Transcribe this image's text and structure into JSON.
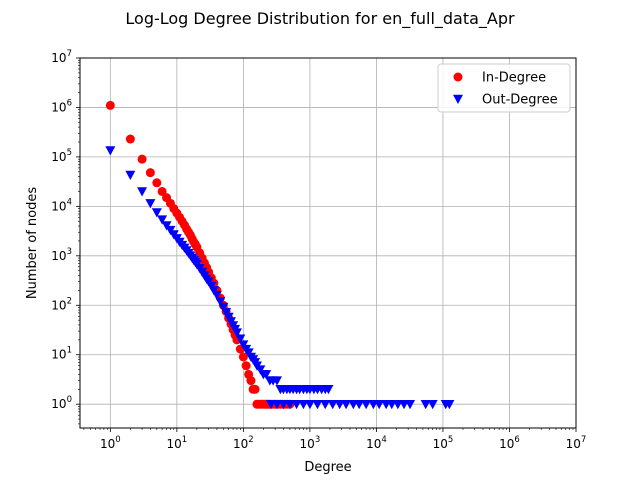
{
  "chart_data": {
    "type": "scatter",
    "title": "Log-Log Degree Distribution for en_full_data_Apr",
    "xlabel": "Degree",
    "ylabel": "Number of nodes",
    "xscale": "log",
    "yscale": "log",
    "xlim": [
      0.35,
      10000000
    ],
    "ylim": [
      0.33,
      10000000
    ],
    "x_ticks": [
      {
        "base": "10",
        "exp": "0",
        "value": 1
      },
      {
        "base": "10",
        "exp": "1",
        "value": 10
      },
      {
        "base": "10",
        "exp": "2",
        "value": 100
      },
      {
        "base": "10",
        "exp": "3",
        "value": 1000
      },
      {
        "base": "10",
        "exp": "4",
        "value": 10000
      },
      {
        "base": "10",
        "exp": "5",
        "value": 100000
      },
      {
        "base": "10",
        "exp": "6",
        "value": 1000000
      },
      {
        "base": "10",
        "exp": "7",
        "value": 10000000
      }
    ],
    "y_ticks": [
      {
        "base": "10",
        "exp": "0",
        "value": 1
      },
      {
        "base": "10",
        "exp": "1",
        "value": 10
      },
      {
        "base": "10",
        "exp": "2",
        "value": 100
      },
      {
        "base": "10",
        "exp": "3",
        "value": 1000
      },
      {
        "base": "10",
        "exp": "4",
        "value": 10000
      },
      {
        "base": "10",
        "exp": "5",
        "value": 100000
      },
      {
        "base": "10",
        "exp": "6",
        "value": 1000000
      },
      {
        "base": "10",
        "exp": "7",
        "value": 10000000
      }
    ],
    "grid": true,
    "legend_position": "top-right",
    "series": [
      {
        "name": "In-Degree",
        "marker": "circle",
        "color": "#ff0000",
        "points": [
          [
            1,
            1100000
          ],
          [
            2,
            230000
          ],
          [
            3,
            90000
          ],
          [
            4,
            48000
          ],
          [
            5,
            30000
          ],
          [
            6,
            20000
          ],
          [
            7,
            15000
          ],
          [
            8,
            11500
          ],
          [
            9,
            9000
          ],
          [
            10,
            7300
          ],
          [
            11,
            6000
          ],
          [
            12,
            5000
          ],
          [
            13,
            4200
          ],
          [
            14,
            3500
          ],
          [
            15,
            3000
          ],
          [
            16,
            2600
          ],
          [
            17,
            2200
          ],
          [
            18,
            1900
          ],
          [
            19,
            1700
          ],
          [
            20,
            1500
          ],
          [
            22,
            1150
          ],
          [
            24,
            900
          ],
          [
            26,
            720
          ],
          [
            28,
            580
          ],
          [
            30,
            470
          ],
          [
            33,
            360
          ],
          [
            36,
            280
          ],
          [
            40,
            200
          ],
          [
            45,
            140
          ],
          [
            50,
            100
          ],
          [
            55,
            75
          ],
          [
            60,
            55
          ],
          [
            65,
            42
          ],
          [
            70,
            32
          ],
          [
            75,
            25
          ],
          [
            80,
            20
          ],
          [
            90,
            13
          ],
          [
            100,
            9
          ],
          [
            110,
            6
          ],
          [
            120,
            4
          ],
          [
            130,
            3
          ],
          [
            140,
            2
          ],
          [
            150,
            2
          ],
          [
            160,
            1
          ],
          [
            170,
            1
          ],
          [
            180,
            1
          ],
          [
            190,
            1
          ],
          [
            200,
            1
          ],
          [
            210,
            1
          ],
          [
            220,
            1
          ],
          [
            230,
            1
          ],
          [
            240,
            1
          ],
          [
            250,
            1
          ],
          [
            270,
            1
          ],
          [
            290,
            1
          ],
          [
            310,
            1
          ],
          [
            330,
            1
          ],
          [
            360,
            1
          ],
          [
            390,
            1
          ],
          [
            420,
            1
          ],
          [
            460,
            1
          ],
          [
            500,
            1
          ]
        ]
      },
      {
        "name": "Out-Degree",
        "marker": "triangle-down",
        "color": "#0000ff",
        "points": [
          [
            1,
            135000
          ],
          [
            2,
            43000
          ],
          [
            3,
            20000
          ],
          [
            4,
            11500
          ],
          [
            5,
            7500
          ],
          [
            6,
            5400
          ],
          [
            7,
            4100
          ],
          [
            8,
            3300
          ],
          [
            9,
            2700
          ],
          [
            10,
            2250
          ],
          [
            11,
            1900
          ],
          [
            12,
            1650
          ],
          [
            13,
            1450
          ],
          [
            14,
            1280
          ],
          [
            15,
            1130
          ],
          [
            16,
            1010
          ],
          [
            17,
            900
          ],
          [
            18,
            810
          ],
          [
            19,
            740
          ],
          [
            20,
            670
          ],
          [
            22,
            560
          ],
          [
            24,
            470
          ],
          [
            26,
            400
          ],
          [
            28,
            340
          ],
          [
            30,
            300
          ],
          [
            33,
            245
          ],
          [
            36,
            200
          ],
          [
            40,
            160
          ],
          [
            45,
            120
          ],
          [
            50,
            92
          ],
          [
            55,
            72
          ],
          [
            60,
            58
          ],
          [
            65,
            47
          ],
          [
            70,
            39
          ],
          [
            75,
            33
          ],
          [
            80,
            28
          ],
          [
            90,
            21
          ],
          [
            100,
            16
          ],
          [
            110,
            13
          ],
          [
            120,
            11
          ],
          [
            130,
            9
          ],
          [
            140,
            8
          ],
          [
            150,
            7
          ],
          [
            160,
            6
          ],
          [
            180,
            5
          ],
          [
            200,
            4
          ],
          [
            220,
            4
          ],
          [
            250,
            3
          ],
          [
            280,
            3
          ],
          [
            320,
            3
          ],
          [
            360,
            2
          ],
          [
            400,
            2
          ],
          [
            450,
            2
          ],
          [
            500,
            2
          ],
          [
            560,
            2
          ],
          [
            630,
            2
          ],
          [
            700,
            2
          ],
          [
            800,
            2
          ],
          [
            900,
            2
          ],
          [
            1000,
            2
          ],
          [
            1150,
            2
          ],
          [
            1300,
            2
          ],
          [
            1500,
            2
          ],
          [
            1700,
            2
          ],
          [
            1900,
            2
          ],
          [
            260,
            1
          ],
          [
            320,
            1
          ],
          [
            400,
            1
          ],
          [
            500,
            1
          ],
          [
            630,
            1
          ],
          [
            800,
            1
          ],
          [
            1000,
            1
          ],
          [
            1300,
            1
          ],
          [
            1700,
            1
          ],
          [
            2200,
            1
          ],
          [
            2800,
            1
          ],
          [
            3500,
            1
          ],
          [
            4500,
            1
          ],
          [
            5500,
            1
          ],
          [
            7000,
            1
          ],
          [
            9000,
            1
          ],
          [
            11000,
            1
          ],
          [
            14000,
            1
          ],
          [
            17000,
            1
          ],
          [
            21000,
            1
          ],
          [
            26000,
            1
          ],
          [
            32000,
            1
          ],
          [
            55000,
            1
          ],
          [
            70000,
            1
          ],
          [
            110000,
            1
          ],
          [
            125000,
            1
          ]
        ]
      }
    ]
  }
}
